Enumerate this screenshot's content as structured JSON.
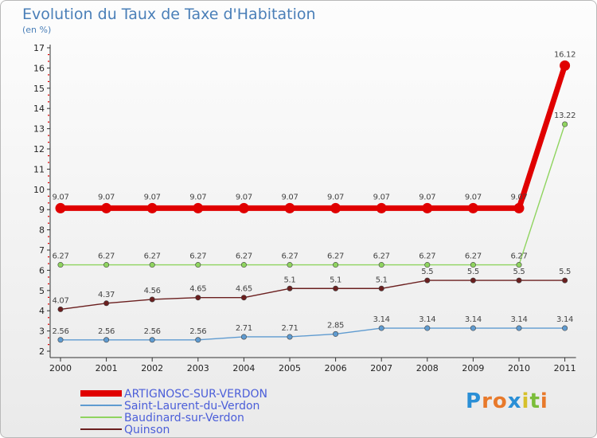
{
  "chart_data": {
    "type": "line",
    "title": "Evolution du Taux de Taxe d'Habitation",
    "subtitle": "(en %)",
    "x": [
      "2000",
      "2001",
      "2002",
      "2003",
      "2004",
      "2005",
      "2006",
      "2007",
      "2008",
      "2009",
      "2010",
      "2011"
    ],
    "ylim": [
      2,
      17
    ],
    "yticks": [
      2,
      3,
      4,
      5,
      6,
      7,
      8,
      9,
      10,
      11,
      12,
      13,
      14,
      15,
      16,
      17
    ],
    "series": [
      {
        "name": "ARTIGNOSC-SUR-VERDON",
        "color": "#e00000",
        "values": [
          9.07,
          9.07,
          9.07,
          9.07,
          9.07,
          9.07,
          9.07,
          9.07,
          9.07,
          9.07,
          9.07,
          16.12
        ],
        "labels": [
          "9.07",
          "9.07",
          "9.07",
          "9.07",
          "9.07",
          "9.07",
          "9.07",
          "9.07",
          "9.07",
          "9.07",
          "9.07",
          "16.12"
        ]
      },
      {
        "name": "Saint-Laurent-du-Verdon",
        "color": "#5f9bd0",
        "values": [
          2.56,
          2.56,
          2.56,
          2.56,
          2.71,
          2.71,
          2.85,
          3.14,
          3.14,
          3.14,
          3.14,
          3.14
        ],
        "labels": [
          "2.56",
          "2.56",
          "2.56",
          "2.56",
          "2.71",
          "2.71",
          "2.85",
          "3.14",
          "3.14",
          "3.14",
          "3.14",
          "3.14"
        ]
      },
      {
        "name": "Baudinard-sur-Verdon",
        "color": "#8fd45f",
        "values": [
          6.27,
          6.27,
          6.27,
          6.27,
          6.27,
          6.27,
          6.27,
          6.27,
          6.27,
          6.27,
          6.27,
          13.22
        ],
        "labels": [
          "6.27",
          "6.27",
          "6.27",
          "6.27",
          "6.27",
          "6.27",
          "6.27",
          "6.27",
          "6.27",
          "6.27",
          "6.27",
          "13.22"
        ]
      },
      {
        "name": "Quinson",
        "color": "#6b1f1f",
        "values": [
          4.07,
          4.37,
          4.56,
          4.65,
          4.65,
          5.1,
          5.1,
          5.1,
          5.5,
          5.5,
          5.5,
          5.5
        ],
        "labels": [
          "4.07",
          "4.37",
          "4.56",
          "4.65",
          "4.65",
          "5.1",
          "5.1",
          "5.1",
          "5.5",
          "5.5",
          "5.5",
          "5.5"
        ]
      }
    ]
  },
  "branding": {
    "logo_text": "Proxiti",
    "logo_letters": [
      "P",
      "r",
      "o",
      "x",
      "i",
      "t",
      "i"
    ],
    "logo_colors": [
      "#2a8fd6",
      "#e8792a",
      "#e8792a",
      "#2a8fd6",
      "#d6c02a",
      "#7bbd3a",
      "#e8792a"
    ]
  }
}
